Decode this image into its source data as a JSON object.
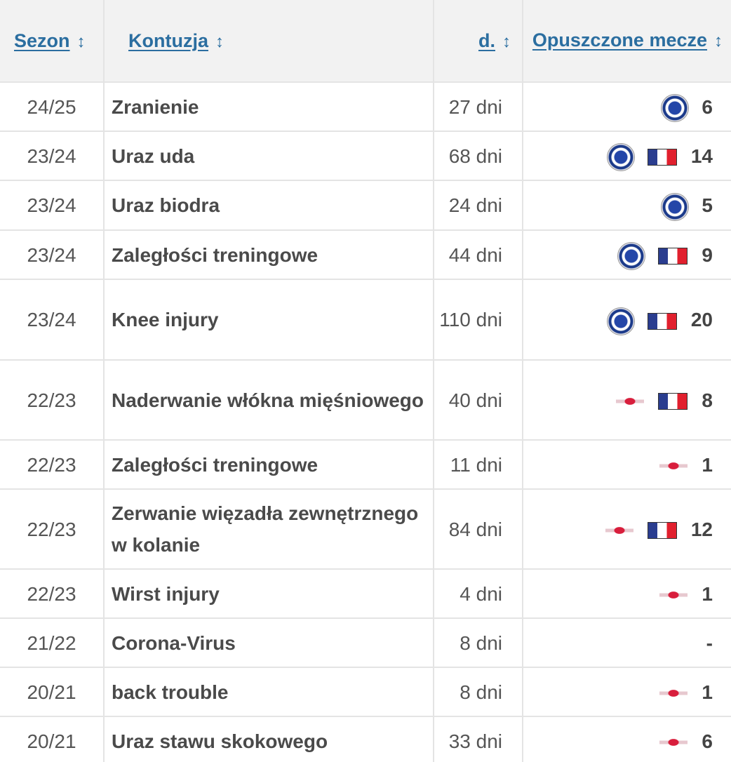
{
  "table": {
    "header": [
      "Sezon",
      "Kontuzja",
      "d.",
      "Opuszczone mecze"
    ],
    "rows": [
      [
        "24/25",
        "Zranienie",
        "27 dni",
        6
      ],
      [
        "23/24",
        "Uraz uda",
        "68 dni",
        14
      ],
      [
        "23/24",
        "Uraz biodra",
        "24 dni",
        5
      ],
      [
        "23/24",
        "Zaległości treningowe",
        "44 dni",
        9
      ],
      [
        "23/24",
        "Knee injury",
        "110 dni",
        20
      ],
      [
        "22/23",
        "Naderwanie włókna mięśniowego",
        "40 dni",
        8
      ],
      [
        "22/23",
        "Zaległości treningowe",
        "11 dni",
        1
      ],
      [
        "22/23",
        "Zerwanie więzadła zewnętrznego w kolanie",
        "84 dni",
        12
      ],
      [
        "22/23",
        "Wirst injury",
        "4 dni",
        1
      ],
      [
        "21/22",
        "Corona-Virus",
        "8 dni",
        "-"
      ],
      [
        "20/21",
        "back trouble",
        "8 dni",
        1
      ],
      [
        "20/21",
        "Uraz stawu skokowego",
        "33 dni",
        6
      ]
    ]
  }
}
